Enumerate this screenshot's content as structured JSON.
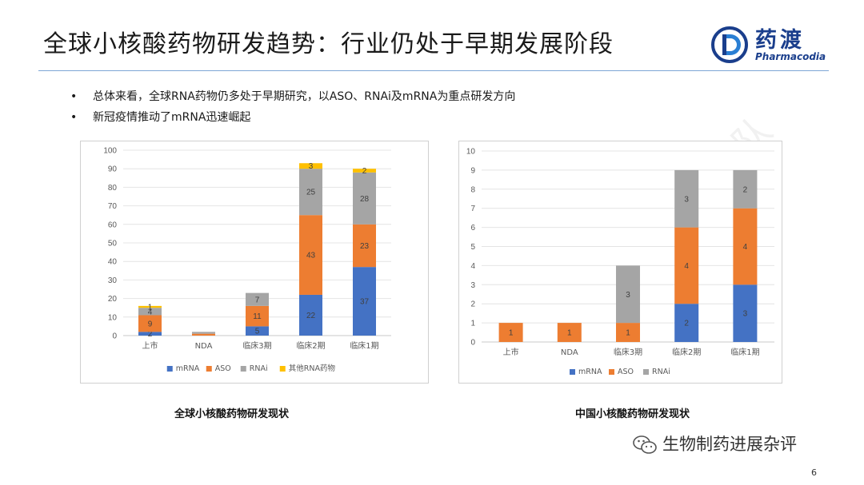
{
  "slide": {
    "title": "全球小核酸药物研发趋势：行业仍处于早期发展阶段",
    "page_number": "6"
  },
  "logo": {
    "cn": "药渡",
    "en": "Pharmacodia"
  },
  "bullets": [
    {
      "marker": "•",
      "text": "总体来看，全球RNA药物仍多处于早期研究，以ASO、RNAi及mRNA为重点研发方向"
    },
    {
      "marker": "•",
      "text": "新冠疫情推动了mRNA迅速崛起"
    }
  ],
  "captions": {
    "left": "全球小核酸药物研发现状",
    "right": "中国小核酸药物研发现状"
  },
  "watermark": {
    "text": "生物制药进展杂评",
    "icon": "wechat-icon"
  },
  "background_watermark": "药渡咨询郭雷团队",
  "colors": {
    "mRNA": "#4472c4",
    "ASO": "#ed7d31",
    "RNAi": "#a5a5a5",
    "other": "#ffc000",
    "brand": "#1a3e8c"
  },
  "chart_data": [
    {
      "type": "bar",
      "stacked": true,
      "title": "",
      "categories": [
        "上市",
        "NDA",
        "临床3期",
        "临床2期",
        "临床1期"
      ],
      "ylim": [
        0,
        100
      ],
      "yticks": [
        0,
        10,
        20,
        30,
        40,
        50,
        60,
        70,
        80,
        90,
        100
      ],
      "grid": true,
      "legend_position": "bottom",
      "series": [
        {
          "name": "mRNA",
          "values": [
            2,
            0,
            5,
            22,
            37
          ],
          "labels": [
            "2",
            "",
            "5",
            "22",
            "37"
          ]
        },
        {
          "name": "ASO",
          "values": [
            9,
            1,
            11,
            43,
            23
          ],
          "labels": [
            "9",
            "",
            "11",
            "43",
            "23"
          ]
        },
        {
          "name": "RNAi",
          "values": [
            4,
            1,
            7,
            25,
            28
          ],
          "labels": [
            "4",
            "",
            "7",
            "25",
            "28"
          ]
        },
        {
          "name": "其他RNA药物",
          "values": [
            1,
            0,
            0,
            3,
            2
          ],
          "labels": [
            "1",
            "",
            "",
            "3",
            "2"
          ]
        }
      ]
    },
    {
      "type": "bar",
      "stacked": true,
      "title": "",
      "categories": [
        "上市",
        "NDA",
        "临床3期",
        "临床2期",
        "临床1期"
      ],
      "ylim": [
        0,
        10
      ],
      "yticks": [
        0,
        1,
        2,
        3,
        4,
        5,
        6,
        7,
        8,
        9,
        10
      ],
      "grid": true,
      "legend_position": "bottom",
      "series": [
        {
          "name": "mRNA",
          "values": [
            0,
            0,
            0,
            2,
            3
          ],
          "labels": [
            "",
            "",
            "",
            "2",
            "3"
          ]
        },
        {
          "name": "ASO",
          "values": [
            1,
            1,
            1,
            4,
            4
          ],
          "labels": [
            "1",
            "1",
            "1",
            "4",
            "4"
          ]
        },
        {
          "name": "RNAi",
          "values": [
            0,
            0,
            3,
            3,
            2
          ],
          "labels": [
            "",
            "",
            "3",
            "3",
            "2"
          ]
        }
      ]
    }
  ]
}
